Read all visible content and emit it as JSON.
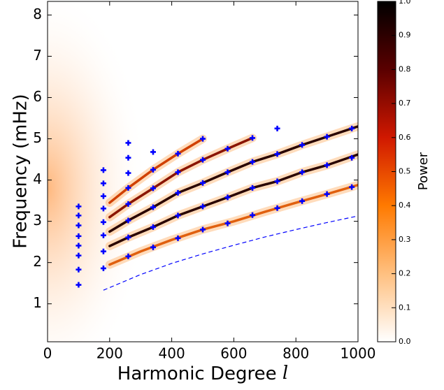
{
  "chart_data": {
    "type": "scatter",
    "xlabel": "Harmonic Degree",
    "xlabel_symbol": "l",
    "ylabel": "Frequency (mHz)",
    "xlim": [
      0,
      1000
    ],
    "ylim": [
      0.08,
      8.33
    ],
    "xticks": [
      0,
      200,
      400,
      600,
      800,
      1000
    ],
    "yticks": [
      1,
      2,
      3,
      4,
      5,
      6,
      7,
      8
    ],
    "points": {
      "color": "#0000ff",
      "x": [
        100,
        100,
        100,
        100,
        100,
        100,
        100,
        100,
        180,
        180,
        180,
        180,
        180,
        180,
        180,
        180,
        260,
        260,
        260,
        260,
        260,
        260,
        260,
        260,
        340,
        340,
        340,
        340,
        340,
        340,
        420,
        420,
        420,
        420,
        420,
        500,
        500,
        500,
        500,
        500,
        580,
        580,
        580,
        580,
        660,
        660,
        660,
        660,
        740,
        740,
        740,
        740,
        820,
        820,
        820,
        900,
        900,
        900,
        980,
        980,
        980
      ],
      "y": [
        3.36,
        3.14,
        2.9,
        2.64,
        2.41,
        2.17,
        1.83,
        1.46,
        4.24,
        3.92,
        3.61,
        3.31,
        2.98,
        2.66,
        2.27,
        1.86,
        4.9,
        4.54,
        4.17,
        3.81,
        3.42,
        3.02,
        2.61,
        2.15,
        4.68,
        4.25,
        3.8,
        3.34,
        2.86,
        2.37,
        4.64,
        4.19,
        3.69,
        3.14,
        2.59,
        5.0,
        4.49,
        3.93,
        3.36,
        2.8,
        4.76,
        4.19,
        3.58,
        2.95,
        5.02,
        4.44,
        3.81,
        3.15,
        5.25,
        4.63,
        3.97,
        3.32,
        4.85,
        4.19,
        3.49,
        5.05,
        4.36,
        3.66,
        5.25,
        4.54,
        3.83
      ]
    },
    "ridges": [
      {
        "color": "#e0600f",
        "x": [
          200,
          300,
          400,
          500,
          600,
          700,
          800,
          900,
          1000
        ],
        "values": [
          1.95,
          2.27,
          2.55,
          2.8,
          3.0,
          3.23,
          3.45,
          3.66,
          3.88
        ]
      },
      {
        "color": "#2a0500",
        "x": [
          200,
          260,
          340,
          420,
          500,
          580,
          660,
          740,
          820,
          900,
          1000
        ],
        "values": [
          2.4,
          2.61,
          2.86,
          3.14,
          3.36,
          3.58,
          3.81,
          3.97,
          4.19,
          4.36,
          4.62
        ]
      },
      {
        "color": "#2a0500",
        "x": [
          200,
          260,
          340,
          420,
          500,
          580,
          660,
          740,
          820,
          900,
          1000
        ],
        "values": [
          2.75,
          3.02,
          3.34,
          3.69,
          3.93,
          4.19,
          4.44,
          4.63,
          4.85,
          5.05,
          5.3
        ]
      },
      {
        "color": "#8a1500",
        "x": [
          200,
          260,
          340,
          420,
          500,
          580,
          660
        ],
        "values": [
          3.1,
          3.42,
          3.8,
          4.19,
          4.49,
          4.76,
          5.02
        ]
      },
      {
        "color": "#d04000",
        "x": [
          200,
          260,
          340,
          420,
          500
        ],
        "values": [
          3.45,
          3.81,
          4.25,
          4.64,
          5.0
        ]
      }
    ],
    "dashed": {
      "color": "#0000ff",
      "x": [
        180,
        300,
        400,
        500,
        600,
        700,
        800,
        900,
        1000
      ],
      "values": [
        1.33,
        1.71,
        1.98,
        2.21,
        2.42,
        2.62,
        2.8,
        2.97,
        3.13
      ]
    },
    "colorbar": {
      "label": "Power",
      "lim": [
        0,
        1
      ],
      "colormap": [
        "#ffffff",
        "#ffc080",
        "#ff7a00",
        "#d01800",
        "#5a0000",
        "#000000"
      ],
      "ticks": [
        {
          "value": 0,
          "label": "0.0"
        },
        {
          "value": 0.1,
          "label": "0.1"
        },
        {
          "value": 0.2,
          "label": "0.2"
        },
        {
          "value": 0.3,
          "label": "0.3"
        },
        {
          "value": 0.4,
          "label": "0.4"
        },
        {
          "value": 0.5,
          "label": "0.5"
        },
        {
          "value": 0.6,
          "label": "0.6"
        },
        {
          "value": 0.7,
          "label": "0.7"
        },
        {
          "value": 0.8,
          "label": "0.8"
        },
        {
          "value": 0.9,
          "label": "0.9"
        },
        {
          "value": 1,
          "label": "1.0"
        }
      ]
    }
  }
}
